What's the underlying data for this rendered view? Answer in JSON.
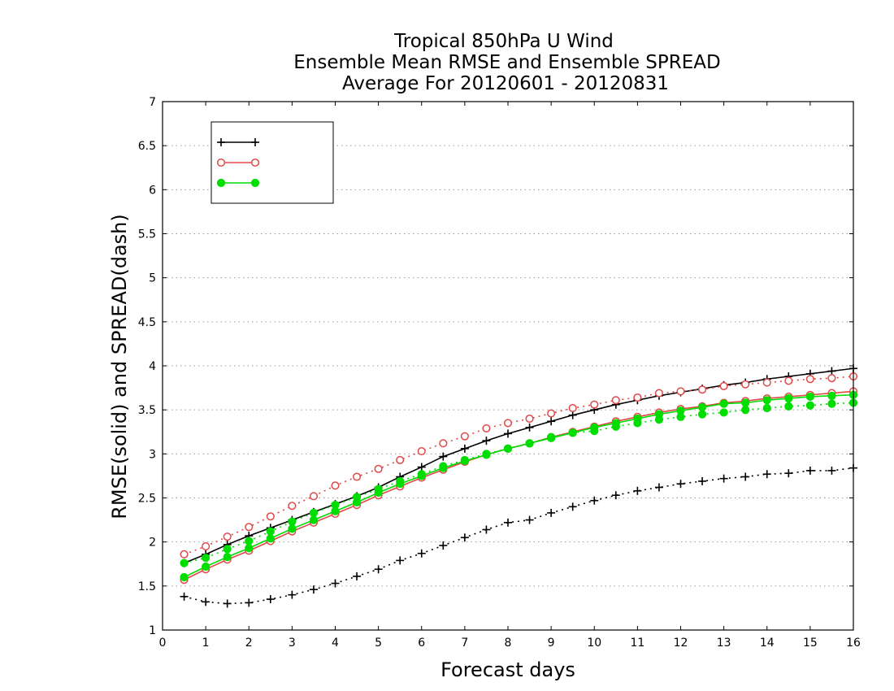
{
  "chart_data": {
    "type": "line",
    "title": [
      "Tropical 850hPa U Wind",
      "Ensemble Mean RMSE and Ensemble SPREAD",
      "Average For 20120601 - 20120831"
    ],
    "xlabel": "Forecast days",
    "ylabel": "RMSE(solid) and SPREAD(dash)",
    "xlim": [
      0,
      16
    ],
    "ylim": [
      1,
      7
    ],
    "x_ticks": [
      0,
      1,
      2,
      3,
      4,
      5,
      6,
      7,
      8,
      9,
      10,
      11,
      12,
      13,
      14,
      15,
      16
    ],
    "x_tick_labels": [
      "0",
      "1",
      "2",
      "3",
      "4",
      "5",
      "6",
      "7",
      "8",
      "9",
      "10",
      "11",
      "12",
      "13",
      "14",
      "15",
      "16"
    ],
    "y_ticks": [
      1,
      1.5,
      2,
      2.5,
      3,
      3.5,
      4,
      4.5,
      5,
      5.5,
      6,
      6.5,
      7
    ],
    "y_tick_labels": [
      "1",
      "1.5",
      "2",
      "2.5",
      "3",
      "3.5",
      "4",
      "4.5",
      "5",
      "5.5",
      "6",
      "6.5",
      "7"
    ],
    "grid": "horizontal dotted",
    "legend_position": "top-left",
    "x": [
      0.5,
      1,
      1.5,
      2,
      2.5,
      3,
      3.5,
      4,
      4.5,
      5,
      5.5,
      6,
      6.5,
      7,
      7.5,
      8,
      8.5,
      9,
      9.5,
      10,
      10.5,
      11,
      11.5,
      12,
      12.5,
      13,
      13.5,
      14,
      14.5,
      15,
      15.5,
      16
    ],
    "series": [
      {
        "legend_key": "black",
        "color": "#000000",
        "marker": "plus",
        "rmse": [
          1.76,
          1.86,
          1.97,
          2.07,
          2.16,
          2.25,
          2.34,
          2.43,
          2.52,
          2.62,
          2.74,
          2.85,
          2.97,
          3.06,
          3.15,
          3.23,
          3.3,
          3.37,
          3.44,
          3.5,
          3.56,
          3.61,
          3.66,
          3.7,
          3.74,
          3.78,
          3.81,
          3.85,
          3.88,
          3.91,
          3.94,
          3.97
        ],
        "spread": [
          1.38,
          1.32,
          1.3,
          1.31,
          1.35,
          1.4,
          1.46,
          1.53,
          1.61,
          1.69,
          1.79,
          1.87,
          1.96,
          2.05,
          2.14,
          2.22,
          2.25,
          2.33,
          2.4,
          2.47,
          2.53,
          2.58,
          2.62,
          2.66,
          2.69,
          2.72,
          2.74,
          2.77,
          2.78,
          2.81,
          2.81,
          2.84
        ]
      },
      {
        "legend_key": "red",
        "color": "#e0484a",
        "marker": "open-circle",
        "rmse": [
          1.57,
          1.69,
          1.8,
          1.9,
          2.01,
          2.12,
          2.22,
          2.32,
          2.42,
          2.53,
          2.63,
          2.73,
          2.82,
          2.91,
          2.99,
          3.06,
          3.12,
          3.19,
          3.25,
          3.31,
          3.37,
          3.42,
          3.47,
          3.51,
          3.54,
          3.58,
          3.6,
          3.63,
          3.65,
          3.67,
          3.69,
          3.71
        ],
        "spread": [
          1.86,
          1.95,
          2.06,
          2.17,
          2.29,
          2.41,
          2.52,
          2.64,
          2.74,
          2.83,
          2.93,
          3.03,
          3.12,
          3.2,
          3.29,
          3.35,
          3.4,
          3.46,
          3.52,
          3.56,
          3.61,
          3.64,
          3.69,
          3.71,
          3.73,
          3.77,
          3.79,
          3.81,
          3.83,
          3.85,
          3.86,
          3.88
        ]
      },
      {
        "legend_key": "green",
        "color": "#00dd00",
        "marker": "filled-circle",
        "rmse": [
          1.6,
          1.72,
          1.83,
          1.93,
          2.04,
          2.15,
          2.25,
          2.35,
          2.45,
          2.56,
          2.66,
          2.75,
          2.84,
          2.92,
          2.99,
          3.06,
          3.12,
          3.18,
          3.24,
          3.3,
          3.35,
          3.4,
          3.45,
          3.49,
          3.53,
          3.57,
          3.58,
          3.61,
          3.63,
          3.65,
          3.66,
          3.67
        ],
        "spread": [
          1.76,
          1.82,
          1.92,
          2.01,
          2.12,
          2.23,
          2.33,
          2.42,
          2.51,
          2.6,
          2.69,
          2.77,
          2.86,
          2.93,
          3.0,
          3.06,
          3.12,
          3.19,
          3.24,
          3.26,
          3.31,
          3.35,
          3.39,
          3.42,
          3.45,
          3.47,
          3.5,
          3.52,
          3.54,
          3.55,
          3.57,
          3.58
        ]
      }
    ]
  },
  "colors": {
    "background": "#ffffff",
    "axis": "#000000",
    "grid": "#9a9a9a"
  }
}
